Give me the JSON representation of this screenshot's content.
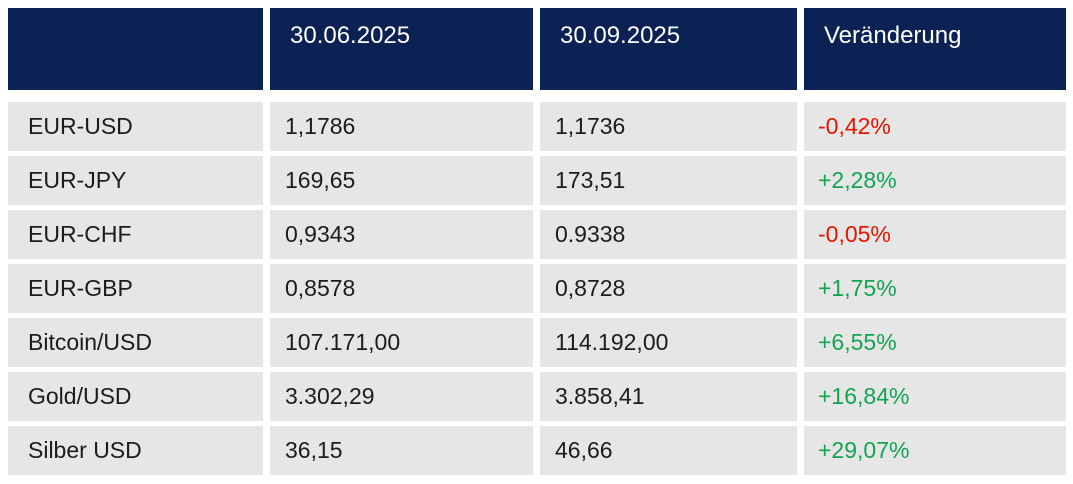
{
  "chart_data": {
    "type": "table",
    "title": "",
    "columns": [
      "",
      "30.06.2025",
      "30.09.2025",
      "Veränderung"
    ],
    "rows": [
      {
        "label": "EUR-USD",
        "val_1": "1,1786",
        "val_2": "1,1736",
        "change": "-0,42%",
        "trend": "down"
      },
      {
        "label": "EUR-JPY",
        "val_1": "169,65",
        "val_2": "173,51",
        "change": "+2,28%",
        "trend": "up"
      },
      {
        "label": "EUR-CHF",
        "val_1": "0,9343",
        "val_2": "0.9338",
        "change": "-0,05%",
        "trend": "down"
      },
      {
        "label": "EUR-GBP",
        "val_1": "0,8578",
        "val_2": "0,8728",
        "change": "+1,75%",
        "trend": "up"
      },
      {
        "label": "Bitcoin/USD",
        "val_1": "107.171,00",
        "val_2": "114.192,00",
        "change": "+6,55%",
        "trend": "up"
      },
      {
        "label": "Gold/USD",
        "val_1": "3.302,29",
        "val_2": "3.858,41",
        "change": "+16,84%",
        "trend": "up"
      },
      {
        "label": "Silber USD",
        "val_1": "36,15",
        "val_2": "46,66",
        "change": "+29,07%",
        "trend": "up"
      }
    ]
  },
  "colors": {
    "header_bg": "#0c2255",
    "row_bg": "#e6e6e6",
    "positive": "#12a551",
    "negative": "#e51400"
  }
}
